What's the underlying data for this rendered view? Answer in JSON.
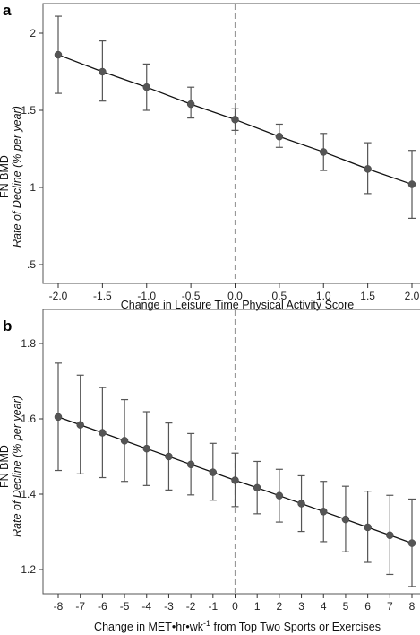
{
  "chart_data": [
    {
      "panel_label": "a",
      "type": "line",
      "ylabel_line1": "FN BMD",
      "ylabel_line2": "Rate of Decline (% per year)",
      "xlabel": "Change in Leisure Time Physical Activity Score",
      "xlim": [
        -2.0,
        2.0
      ],
      "ylim": [
        0.5,
        2.2
      ],
      "xticks": [
        -2.0,
        -1.5,
        -1.0,
        -0.5,
        0.0,
        0.5,
        1.0,
        1.5,
        2.0
      ],
      "xtick_labels": [
        "-2.0",
        "-1.5",
        "-1.0",
        "-0.5",
        "0.0",
        "0.5",
        "1.0",
        "1.5",
        "2.0"
      ],
      "yticks": [
        0.5,
        1,
        1.5,
        2
      ],
      "ytick_labels": [
        ".5",
        "1",
        "1.5",
        "2"
      ],
      "reference_x": 0,
      "points": [
        {
          "x": -2.0,
          "y": 1.86,
          "lo": 1.61,
          "hi": 2.11
        },
        {
          "x": -1.5,
          "y": 1.75,
          "lo": 1.56,
          "hi": 1.95
        },
        {
          "x": -1.0,
          "y": 1.65,
          "lo": 1.5,
          "hi": 1.8
        },
        {
          "x": -0.5,
          "y": 1.54,
          "lo": 1.45,
          "hi": 1.65
        },
        {
          "x": 0.0,
          "y": 1.44,
          "lo": 1.37,
          "hi": 1.51
        },
        {
          "x": 0.5,
          "y": 1.33,
          "lo": 1.26,
          "hi": 1.41
        },
        {
          "x": 1.0,
          "y": 1.23,
          "lo": 1.11,
          "hi": 1.35
        },
        {
          "x": 1.5,
          "y": 1.12,
          "lo": 0.96,
          "hi": 1.29
        },
        {
          "x": 2.0,
          "y": 1.02,
          "lo": 0.8,
          "hi": 1.24
        }
      ]
    },
    {
      "panel_label": "b",
      "type": "line",
      "ylabel_line1": "FN BMD",
      "ylabel_line2": "Rate of Decline (% per year)",
      "xlabel": "Change in MET•hr•wk-1 from Top Two Sports or Exercises",
      "xlabel_pre": "Change in MET•hr•wk",
      "xlabel_sup": "-1",
      "xlabel_post": " from Top Two Sports or Exercises",
      "xlim": [
        -8,
        8
      ],
      "ylim": [
        1.15,
        1.82
      ],
      "xticks": [
        -8,
        -7,
        -6,
        -5,
        -4,
        -3,
        -2,
        -1,
        0,
        1,
        2,
        3,
        4,
        5,
        6,
        7,
        8
      ],
      "xtick_labels": [
        "-8",
        "-7",
        "-6",
        "-5",
        "-4",
        "-3",
        "-2",
        "-1",
        "0",
        "1",
        "2",
        "3",
        "4",
        "5",
        "6",
        "7",
        "8"
      ],
      "yticks": [
        1.2,
        1.4,
        1.6,
        1.8
      ],
      "ytick_labels": [
        "1.2",
        "1.4",
        "1.6",
        "1.8"
      ],
      "reference_x": 0,
      "points": [
        {
          "x": -8,
          "y": 1.605,
          "lo": 1.463,
          "hi": 1.748
        },
        {
          "x": -7,
          "y": 1.584,
          "lo": 1.454,
          "hi": 1.716
        },
        {
          "x": -6,
          "y": 1.563,
          "lo": 1.444,
          "hi": 1.683
        },
        {
          "x": -5,
          "y": 1.542,
          "lo": 1.434,
          "hi": 1.651
        },
        {
          "x": -4,
          "y": 1.521,
          "lo": 1.423,
          "hi": 1.619
        },
        {
          "x": -3,
          "y": 1.5,
          "lo": 1.411,
          "hi": 1.589
        },
        {
          "x": -2,
          "y": 1.479,
          "lo": 1.398,
          "hi": 1.561
        },
        {
          "x": -1,
          "y": 1.458,
          "lo": 1.384,
          "hi": 1.535
        },
        {
          "x": 0,
          "y": 1.437,
          "lo": 1.367,
          "hi": 1.509
        },
        {
          "x": 1,
          "y": 1.417,
          "lo": 1.348,
          "hi": 1.487
        },
        {
          "x": 2,
          "y": 1.396,
          "lo": 1.326,
          "hi": 1.466
        },
        {
          "x": 3,
          "y": 1.375,
          "lo": 1.301,
          "hi": 1.449
        },
        {
          "x": 4,
          "y": 1.354,
          "lo": 1.274,
          "hi": 1.434
        },
        {
          "x": 5,
          "y": 1.333,
          "lo": 1.247,
          "hi": 1.421
        },
        {
          "x": 6,
          "y": 1.312,
          "lo": 1.219,
          "hi": 1.408
        },
        {
          "x": 7,
          "y": 1.291,
          "lo": 1.187,
          "hi": 1.397
        },
        {
          "x": 8,
          "y": 1.27,
          "lo": 1.155,
          "hi": 1.387
        }
      ]
    }
  ]
}
